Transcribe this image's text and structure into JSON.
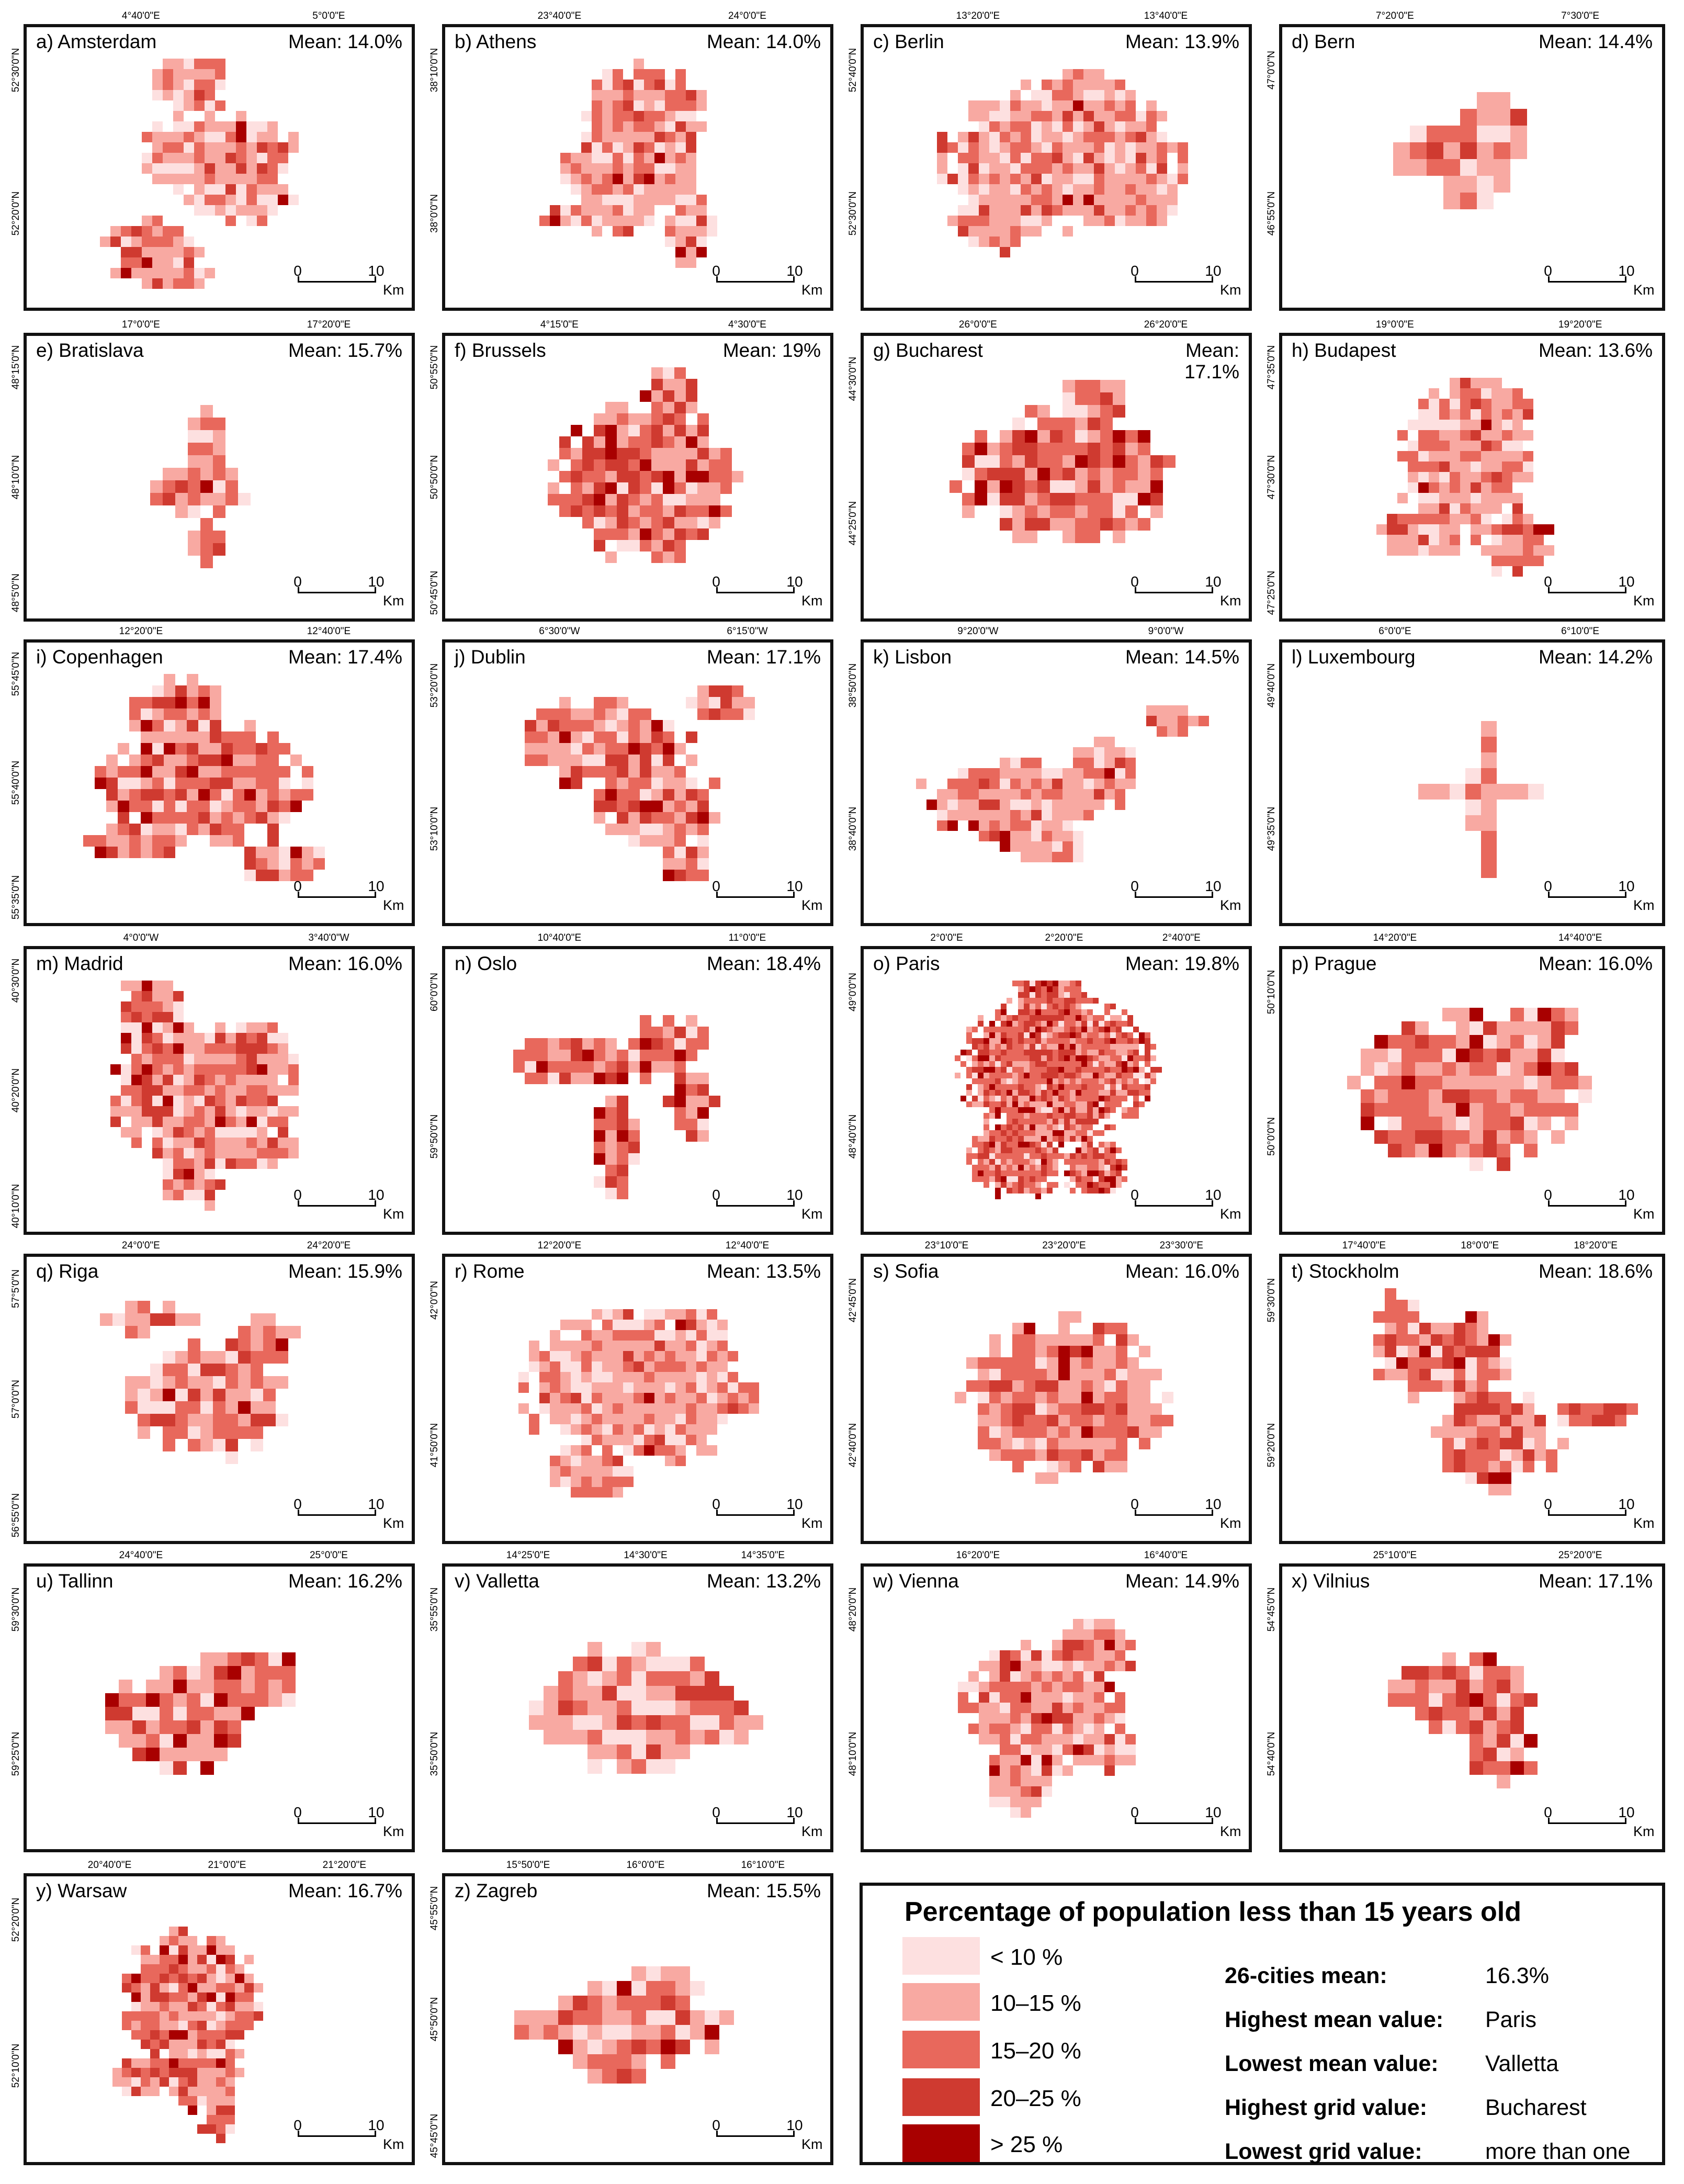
{
  "panels": [
    {
      "name": "a) Amsterdam",
      "mean": "Mean: 14.0%",
      "top": [
        "4°40'0\"E",
        "5°0'0\"E"
      ],
      "left": [
        "52°30'0\"N",
        "52°20'0\"N"
      ],
      "seed": 11,
      "shape": "amsterdam"
    },
    {
      "name": "b) Athens",
      "mean": "Mean: 14.0%",
      "top": [
        "23°40'0\"E",
        "24°0'0\"E"
      ],
      "left": [
        "38°10'0\"N",
        "38°0'0\"N"
      ],
      "seed": 22,
      "shape": "athens"
    },
    {
      "name": "c) Berlin",
      "mean": "Mean: 13.9%",
      "top": [
        "13°20'0\"E",
        "13°40'0\"E"
      ],
      "left": [
        "52°40'0\"N",
        "52°30'0\"N"
      ],
      "seed": 33,
      "shape": "berlin"
    },
    {
      "name": "d) Bern",
      "mean": "Mean: 14.4%",
      "top": [
        "7°20'0\"E",
        "7°30'0\"E"
      ],
      "left": [
        "47°0'0\"N",
        "46°55'0\"N"
      ],
      "seed": 44,
      "shape": "bern"
    },
    {
      "name": "e) Bratislava",
      "mean": "Mean: 15.7%",
      "top": [
        "17°0'0\"E",
        "17°20'0\"E"
      ],
      "left": [
        "48°15'0\"N",
        "48°10'0\"N",
        "48°5'0\"N"
      ],
      "seed": 55,
      "shape": "bratislava"
    },
    {
      "name": "f) Brussels",
      "mean": "Mean: 19%",
      "top": [
        "4°15'0\"E",
        "4°30'0\"E"
      ],
      "left": [
        "50°55'0\"N",
        "50°50'0\"N",
        "50°45'0\"N"
      ],
      "seed": 66,
      "shape": "brussels"
    },
    {
      "name": "g) Bucharest",
      "mean": "Mean:\n17.1%",
      "top": [
        "26°0'0\"E",
        "26°20'0\"E"
      ],
      "left": [
        "44°30'0\"N",
        "44°25'0\"N"
      ],
      "seed": 77,
      "shape": "bucharest"
    },
    {
      "name": "h) Budapest",
      "mean": "Mean: 13.6%",
      "top": [
        "19°0'0\"E",
        "19°20'0\"E"
      ],
      "left": [
        "47°35'0\"N",
        "47°30'0\"N",
        "47°25'0\"N"
      ],
      "seed": 88,
      "shape": "budapest"
    },
    {
      "name": "i) Copenhagen",
      "mean": "Mean: 17.4%",
      "top": [
        "12°20'0\"E",
        "12°40'0\"E"
      ],
      "left": [
        "55°45'0\"N",
        "55°40'0\"N",
        "55°35'0\"N"
      ],
      "seed": 99,
      "shape": "copenhagen"
    },
    {
      "name": "j) Dublin",
      "mean": "Mean: 17.1%",
      "top": [
        "6°30'0\"W",
        "6°15'0\"W"
      ],
      "left": [
        "53°20'0\"N",
        "53°10'0\"N"
      ],
      "seed": 111,
      "shape": "dublin"
    },
    {
      "name": "k) Lisbon",
      "mean": "Mean: 14.5%",
      "top": [
        "9°20'0\"W",
        "9°0'0\"W"
      ],
      "left": [
        "38°50'0\"N",
        "38°40'0\"N"
      ],
      "seed": 122,
      "shape": "lisbon"
    },
    {
      "name": "l) Luxembourg",
      "mean": "Mean: 14.2%",
      "top": [
        "6°0'0\"E",
        "6°10'0\"E"
      ],
      "left": [
        "49°40'0\"N",
        "49°35'0\"N"
      ],
      "seed": 133,
      "shape": "luxembourg"
    },
    {
      "name": "m) Madrid",
      "mean": "Mean: 16.0%",
      "top": [
        "4°0'0\"W",
        "3°40'0\"W"
      ],
      "left": [
        "40°30'0\"N",
        "40°20'0\"N",
        "40°10'0\"N"
      ],
      "seed": 144,
      "shape": "madrid"
    },
    {
      "name": "n) Oslo",
      "mean": "Mean: 18.4%",
      "top": [
        "10°40'0\"E",
        "11°0'0\"E"
      ],
      "left": [
        "60°0'0\"N",
        "59°50'0\"N"
      ],
      "seed": 155,
      "shape": "oslo"
    },
    {
      "name": "o) Paris",
      "mean": "Mean: 19.8%",
      "top": [
        "2°0'0\"E",
        "2°20'0\"E",
        "2°40'0\"E"
      ],
      "left": [
        "49°0'0\"N",
        "48°40'0\"N"
      ],
      "seed": 166,
      "shape": "paris"
    },
    {
      "name": "p) Prague",
      "mean": "Mean: 16.0%",
      "top": [
        "14°20'0\"E",
        "14°40'0\"E"
      ],
      "left": [
        "50°10'0\"N",
        "50°0'0\"N"
      ],
      "seed": 177,
      "shape": "prague"
    },
    {
      "name": "q) Riga",
      "mean": "Mean: 15.9%",
      "top": [
        "24°0'0\"E",
        "24°20'0\"E"
      ],
      "left": [
        "57°5'0\"N",
        "57°0'0\"N",
        "56°55'0\"N"
      ],
      "seed": 188,
      "shape": "riga"
    },
    {
      "name": "r) Rome",
      "mean": "Mean: 13.5%",
      "top": [
        "12°20'0\"E",
        "12°40'0\"E"
      ],
      "left": [
        "42°0'0\"N",
        "41°50'0\"N"
      ],
      "seed": 199,
      "shape": "rome"
    },
    {
      "name": "s) Sofia",
      "mean": "Mean: 16.0%",
      "top": [
        "23°10'0\"E",
        "23°20'0\"E",
        "23°30'0\"E"
      ],
      "left": [
        "42°45'0\"N",
        "42°40'0\"N"
      ],
      "seed": 211,
      "shape": "sofia"
    },
    {
      "name": "t) Stockholm",
      "mean": "Mean: 18.6%",
      "top": [
        "17°40'0\"E",
        "18°0'0\"E",
        "18°20'0\"E"
      ],
      "left": [
        "59°30'0\"N",
        "59°20'0\"N"
      ],
      "seed": 222,
      "shape": "stockholm"
    },
    {
      "name": "u) Tallinn",
      "mean": "Mean: 16.2%",
      "top": [
        "24°40'0\"E",
        "25°0'0\"E"
      ],
      "left": [
        "59°30'0\"N",
        "59°25'0\"N"
      ],
      "seed": 233,
      "shape": "tallinn"
    },
    {
      "name": "v) Valletta",
      "mean": "Mean: 13.2%",
      "top": [
        "14°25'0\"E",
        "14°30'0\"E",
        "14°35'0\"E"
      ],
      "left": [
        "35°55'0\"N",
        "35°50'0\"N"
      ],
      "seed": 244,
      "shape": "valletta"
    },
    {
      "name": "w) Vienna",
      "mean": "Mean: 14.9%",
      "top": [
        "16°20'0\"E",
        "16°40'0\"E"
      ],
      "left": [
        "48°20'0\"N",
        "48°10'0\"N"
      ],
      "seed": 255,
      "shape": "vienna"
    },
    {
      "name": "x) Vilnius",
      "mean": "Mean: 17.1%",
      "top": [
        "25°10'0\"E",
        "25°20'0\"E"
      ],
      "left": [
        "54°45'0\"N",
        "54°40'0\"N"
      ],
      "seed": 266,
      "shape": "vilnius"
    },
    {
      "name": "y) Warsaw",
      "mean": "Mean: 16.7%",
      "top": [
        "20°40'0\"E",
        "21°0'0\"E",
        "21°20'0\"E"
      ],
      "left": [
        "52°20'0\"N",
        "52°10'0\"N"
      ],
      "seed": 277,
      "shape": "warsaw"
    },
    {
      "name": "z) Zagreb",
      "mean": "Mean: 15.5%",
      "top": [
        "15°50'0\"E",
        "16°0'0\"E",
        "16°10'0\"E"
      ],
      "left": [
        "45°55'0\"N",
        "45°50'0\"N",
        "45°45'0\"N"
      ],
      "seed": 288,
      "shape": "zagreb"
    }
  ],
  "scalebar": {
    "zero": "0",
    "ten": "10",
    "unit": "Km"
  },
  "legend": {
    "title": "Percentage of population less than 15 years old",
    "classes": [
      {
        "label": "< 10 %",
        "color": "#fde0e0"
      },
      {
        "label": "10–15 %",
        "color": "#f8a9a2"
      },
      {
        "label": "15–20 %",
        "color": "#e8685c"
      },
      {
        "label": "20–25 %",
        "color": "#cf3a30"
      },
      {
        "label": "> 25 %",
        "color": "#a80000"
      }
    ],
    "stats": [
      {
        "key": "26-cities mean:",
        "value": "16.3%"
      },
      {
        "key": "Highest mean value:",
        "value": "Paris"
      },
      {
        "key": "Lowest mean value:",
        "value": "Valletta"
      },
      {
        "key": "Highest grid value:",
        "value": "Bucharest"
      },
      {
        "key": "Lowest grid value:",
        "value": "more than one"
      }
    ]
  }
}
